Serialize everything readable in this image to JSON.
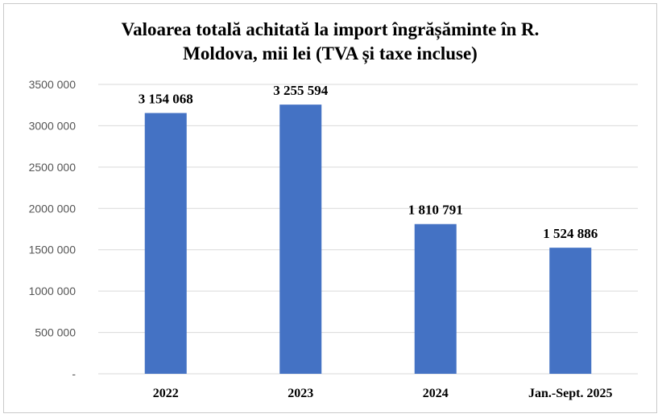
{
  "chart_data": {
    "type": "bar",
    "title": "Valoarea totală achitată la import îngrășăminte în R. Moldova, mii lei (TVA și taxe incluse)",
    "title_lines": [
      "Valoarea totală achitată la import îngrășăminte în R.",
      "Moldova, mii lei (TVA și taxe incluse)"
    ],
    "categories": [
      "2022",
      "2023",
      "2024",
      "Jan.-Sept. 2025"
    ],
    "values": [
      3154068,
      3255594,
      1810791,
      1524886
    ],
    "value_labels": [
      "3 154 068",
      "3 255 594",
      "1 810 791",
      "1 524 886"
    ],
    "ylim": [
      0,
      3500000
    ],
    "yticks": [
      0,
      500000,
      1000000,
      1500000,
      2000000,
      2500000,
      3000000,
      3500000
    ],
    "ytick_labels": [
      "-",
      "500 000",
      "1000 000",
      "1500 000",
      "2000 000",
      "2500 000",
      "3000 000",
      "3500 000"
    ],
    "grid": true,
    "bar_color": "#4472C4",
    "grid_color": "#d9d9d9"
  }
}
